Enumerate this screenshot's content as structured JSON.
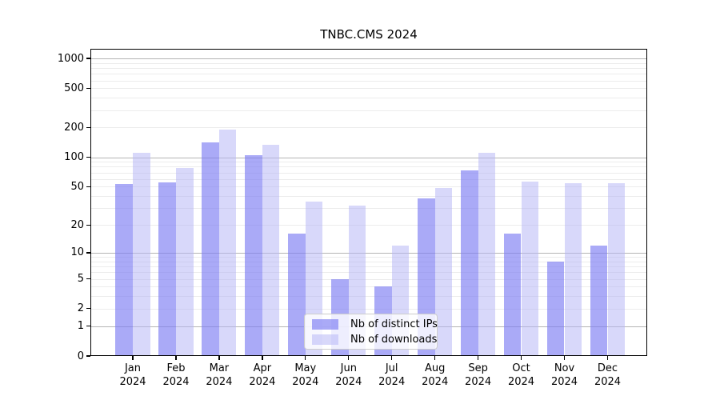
{
  "chart_data": {
    "type": "bar",
    "title": "TNBC.CMS 2024",
    "categories": [
      "Jan 2024",
      "Feb 2024",
      "Mar 2024",
      "Apr 2024",
      "May 2024",
      "Jun 2024",
      "Jul 2024",
      "Aug 2024",
      "Sep 2024",
      "Oct 2024",
      "Nov 2024",
      "Dec 2024"
    ],
    "series": [
      {
        "name": "Nb of distinct IPs",
        "values": [
          53,
          55,
          141,
          105,
          16,
          5,
          4,
          38,
          73,
          16,
          8,
          12
        ],
        "color": "#aaaaf2",
        "fill_rgba": "rgba(124,124,243,0.65)"
      },
      {
        "name": "Nb of downloads",
        "values": [
          110,
          78,
          190,
          133,
          35,
          32,
          12,
          48,
          110,
          56,
          54,
          54
        ],
        "color": "#dadafa",
        "fill_rgba": "rgba(180,180,245,0.52)"
      }
    ],
    "xlabel": "",
    "ylabel": "",
    "y_scale": "log1p",
    "y_ticks": [
      0,
      1,
      2,
      5,
      10,
      20,
      50,
      100,
      200,
      500,
      1000
    ],
    "ylim": [
      0,
      1250
    ],
    "grid": true,
    "legend_position": "inside-lower-center"
  },
  "colors": {
    "background": "#ffffff",
    "axis": "#000000",
    "grid_major": "#b4b4b4",
    "grid_minor": "#ebebeb",
    "text": "#000000",
    "legend_border": "#cccccc",
    "legend_bg": "rgba(255,255,255,0.8)"
  }
}
